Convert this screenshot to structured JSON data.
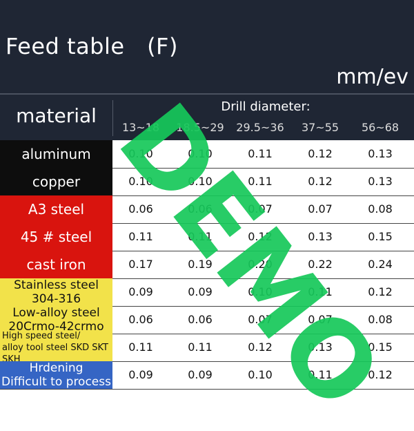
{
  "title": "Feed table　(F)",
  "unit": "mm/ev",
  "header": {
    "material": "material",
    "drill_diameter": "Drill diameter:",
    "columns": [
      "13~18",
      "18.5~29",
      "29.5~36",
      "37~55",
      "56~68"
    ]
  },
  "rows": [
    {
      "material": "aluminum",
      "bg": "#0d0d0d",
      "fg": "#ffffff",
      "values": [
        "0.10",
        "0.10",
        "0.11",
        "0.12",
        "0.13"
      ]
    },
    {
      "material": "copper",
      "bg": "#0d0d0d",
      "fg": "#ffffff",
      "values": [
        "0.10",
        "0.10",
        "0.11",
        "0.12",
        "0.13"
      ]
    },
    {
      "material": "A3 steel",
      "bg": "#d9140e",
      "fg": "#ffffff",
      "values": [
        "0.06",
        "0.06",
        "0.07",
        "0.07",
        "0.08"
      ]
    },
    {
      "material": "45 # steel",
      "bg": "#d9140e",
      "fg": "#ffffff",
      "values": [
        "0.11",
        "0.11",
        "0.12",
        "0.13",
        "0.15"
      ]
    },
    {
      "material": "cast iron",
      "bg": "#d9140e",
      "fg": "#ffffff",
      "values": [
        "0.17",
        "0.19",
        "0.20",
        "0.22",
        "0.24"
      ]
    },
    {
      "material": "Stainless steel\n304-316",
      "bg": "#f2e24a",
      "fg": "#111111",
      "values": [
        "0.09",
        "0.09",
        "0.10",
        "0.11",
        "0.12"
      ]
    },
    {
      "material": "Low-alloy steel\n20Crmo-42crmo",
      "bg": "#f2e24a",
      "fg": "#111111",
      "values": [
        "0.06",
        "0.06",
        "0.07",
        "0.07",
        "0.08"
      ]
    },
    {
      "material": "High speed steel/\nalloy tool steel SKD SKT SKH",
      "bg": "#f2e24a",
      "fg": "#111111",
      "small": true,
      "values": [
        "0.11",
        "0.11",
        "0.12",
        "0.13",
        "0.15"
      ]
    },
    {
      "material": "Hrdening\nDifficult to process",
      "bg": "#3565c4",
      "fg": "#ffffff",
      "values": [
        "0.09",
        "0.09",
        "0.10",
        "0.11",
        "0.12"
      ]
    }
  ],
  "watermark": "DEMO"
}
